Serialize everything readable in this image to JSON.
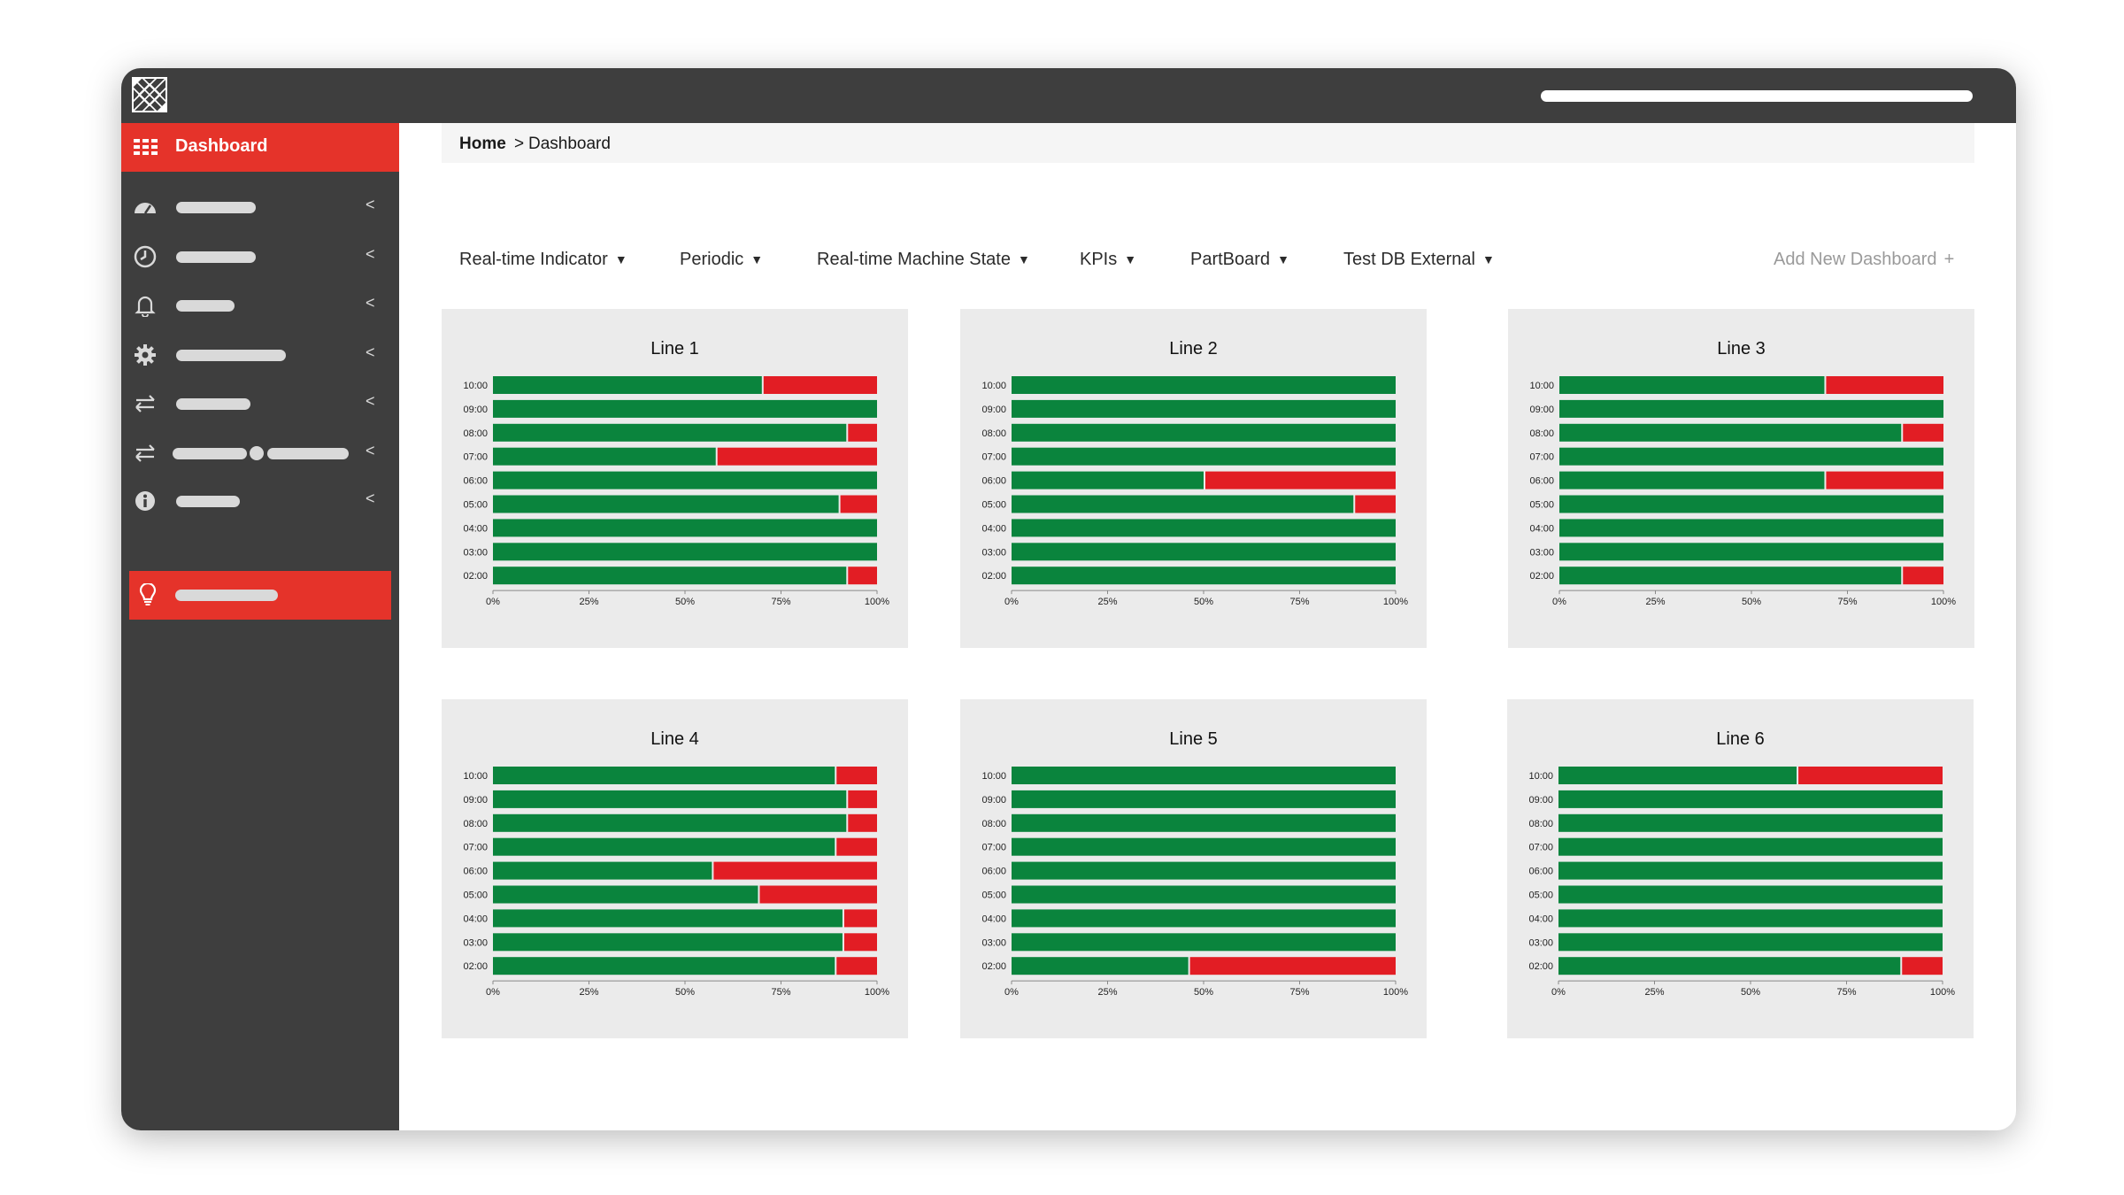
{
  "sidebar": {
    "active_item": {
      "label": "Dashboard",
      "icon": "grid-icon"
    },
    "items": [
      {
        "icon": "gauge-icon",
        "chevron": "<"
      },
      {
        "icon": "clock-icon",
        "chevron": "<"
      },
      {
        "icon": "bell-icon",
        "chevron": "<"
      },
      {
        "icon": "gear-icon",
        "chevron": "<"
      },
      {
        "icon": "transfer-icon",
        "chevron": "<"
      },
      {
        "icon": "transfer-icon",
        "chevron": "<"
      },
      {
        "icon": "info-icon",
        "chevron": "<"
      }
    ],
    "highlighted_item": {
      "icon": "lightbulb-icon"
    }
  },
  "breadcrumb": {
    "home": "Home",
    "separator": ">",
    "current": "Dashboard"
  },
  "tabs": [
    {
      "label": "Real-time Indicator"
    },
    {
      "label": "Periodic"
    },
    {
      "label": "Real-time Machine State"
    },
    {
      "label": "KPIs"
    },
    {
      "label": "PartBoard"
    },
    {
      "label": "Test DB External"
    }
  ],
  "add_dashboard": {
    "label": "Add New Dashboard",
    "icon": "plus-icon"
  },
  "colors": {
    "green": "#0a843d",
    "red": "#e21d24",
    "accent": "#e5332a",
    "dark": "#3e3e3e"
  },
  "chart_data": [
    {
      "type": "bar",
      "title": "Line 1",
      "categories": [
        "10:00",
        "09:00",
        "08:00",
        "07:00",
        "06:00",
        "05:00",
        "04:00",
        "03:00",
        "02:00"
      ],
      "xticks": [
        "0%",
        "25%",
        "50%",
        "75%",
        "100%"
      ],
      "series": [
        {
          "values": [
            70,
            100,
            92,
            58,
            100,
            90,
            100,
            100,
            92
          ]
        },
        {
          "values": [
            30,
            0,
            8,
            42,
            0,
            10,
            0,
            0,
            8
          ]
        }
      ]
    },
    {
      "type": "bar",
      "title": "Line 2",
      "categories": [
        "10:00",
        "09:00",
        "08:00",
        "07:00",
        "06:00",
        "05:00",
        "04:00",
        "03:00",
        "02:00"
      ],
      "xticks": [
        "0%",
        "25%",
        "50%",
        "75%",
        "100%"
      ],
      "series": [
        {
          "values": [
            100,
            100,
            100,
            100,
            50,
            89,
            100,
            100,
            100
          ]
        },
        {
          "values": [
            0,
            0,
            0,
            0,
            50,
            11,
            0,
            0,
            0
          ]
        }
      ]
    },
    {
      "type": "bar",
      "title": "Line 3",
      "categories": [
        "10:00",
        "09:00",
        "08:00",
        "07:00",
        "06:00",
        "05:00",
        "04:00",
        "03:00",
        "02:00"
      ],
      "xticks": [
        "0%",
        "25%",
        "50%",
        "75%",
        "100%"
      ],
      "series": [
        {
          "values": [
            69,
            100,
            89,
            100,
            69,
            100,
            100,
            100,
            89
          ]
        },
        {
          "values": [
            31,
            0,
            11,
            0,
            31,
            0,
            0,
            0,
            11
          ]
        }
      ]
    },
    {
      "type": "bar",
      "title": "Line 4",
      "categories": [
        "10:00",
        "09:00",
        "08:00",
        "07:00",
        "06:00",
        "05:00",
        "04:00",
        "03:00",
        "02:00"
      ],
      "xticks": [
        "0%",
        "25%",
        "50%",
        "75%",
        "100%"
      ],
      "series": [
        {
          "values": [
            89,
            92,
            92,
            89,
            57,
            69,
            91,
            91,
            89
          ]
        },
        {
          "values": [
            11,
            8,
            8,
            11,
            43,
            31,
            9,
            9,
            11
          ]
        }
      ]
    },
    {
      "type": "bar",
      "title": "Line 5",
      "categories": [
        "10:00",
        "09:00",
        "08:00",
        "07:00",
        "06:00",
        "05:00",
        "04:00",
        "03:00",
        "02:00"
      ],
      "xticks": [
        "0%",
        "25%",
        "50%",
        "75%",
        "100%"
      ],
      "series": [
        {
          "values": [
            100,
            100,
            100,
            100,
            100,
            100,
            100,
            100,
            46
          ]
        },
        {
          "values": [
            0,
            0,
            0,
            0,
            0,
            0,
            0,
            0,
            54
          ]
        }
      ]
    },
    {
      "type": "bar",
      "title": "Line 6",
      "categories": [
        "10:00",
        "09:00",
        "08:00",
        "07:00",
        "06:00",
        "05:00",
        "04:00",
        "03:00",
        "02:00"
      ],
      "xticks": [
        "0%",
        "25%",
        "50%",
        "75%",
        "100%"
      ],
      "series": [
        {
          "values": [
            62,
            100,
            100,
            100,
            100,
            100,
            100,
            100,
            89
          ]
        },
        {
          "values": [
            38,
            0,
            0,
            0,
            0,
            0,
            0,
            0,
            11
          ]
        }
      ]
    }
  ]
}
